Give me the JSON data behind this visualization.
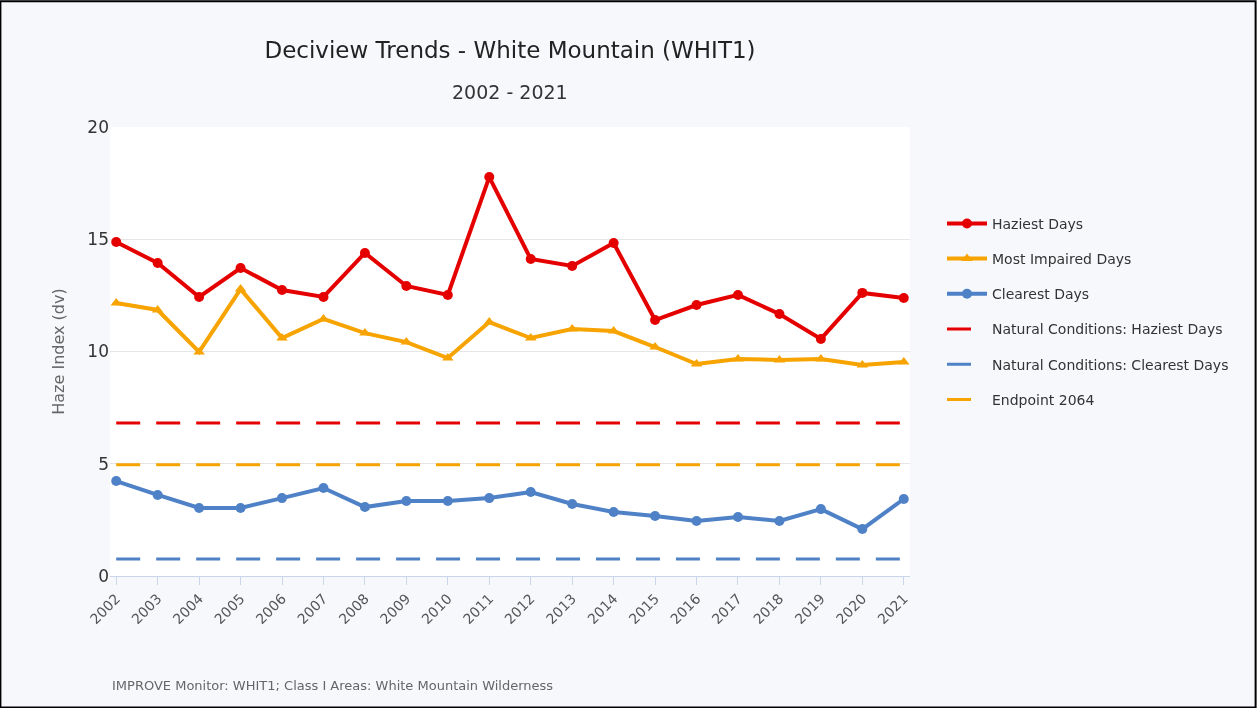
{
  "chart_data": {
    "type": "line",
    "title": "Deciview Trends - White Mountain (WHIT1)",
    "subtitle": "2002 - 2021",
    "ylabel": "Haze Index (dv)",
    "categories": [
      "2002",
      "2003",
      "2004",
      "2005",
      "2006",
      "2007",
      "2008",
      "2009",
      "2010",
      "2011",
      "2012",
      "2013",
      "2014",
      "2015",
      "2016",
      "2017",
      "2018",
      "2019",
      "2020",
      "2021"
    ],
    "series": [
      {
        "name": "Haziest Days",
        "color": "#e50000",
        "marker": "circle",
        "values": [
          14.88,
          13.94,
          12.43,
          13.72,
          12.74,
          12.43,
          14.39,
          12.92,
          12.52,
          17.77,
          14.12,
          13.81,
          14.83,
          11.4,
          12.07,
          12.52,
          11.67,
          10.56,
          12.61,
          12.38
        ]
      },
      {
        "name": "Most Impaired Days",
        "color": "#f7a300",
        "marker": "triangle",
        "values": [
          12.16,
          11.85,
          9.98,
          12.78,
          10.6,
          11.45,
          10.82,
          10.42,
          9.71,
          11.31,
          10.6,
          11.0,
          10.91,
          10.2,
          9.44,
          9.67,
          9.62,
          9.67,
          9.4,
          9.53
        ]
      },
      {
        "name": "Clearest Days",
        "color": "#4f81c7",
        "marker": "circle",
        "values": [
          4.23,
          3.61,
          3.03,
          3.03,
          3.47,
          3.92,
          3.07,
          3.34,
          3.34,
          3.47,
          3.74,
          3.21,
          2.85,
          2.67,
          2.45,
          2.63,
          2.45,
          2.98,
          2.09,
          3.43
        ]
      },
      {
        "name": "Natural Conditions: Haziest Days",
        "color": "#e50000",
        "marker": "none",
        "line_style": "dashed",
        "values": [
          6.82,
          6.82,
          6.82,
          6.82,
          6.82,
          6.82,
          6.82,
          6.82,
          6.82,
          6.82,
          6.82,
          6.82,
          6.82,
          6.82,
          6.82,
          6.82,
          6.82,
          6.82,
          6.82,
          6.82
        ]
      },
      {
        "name": "Natural Conditions: Clearest Days",
        "color": "#4f81c7",
        "marker": "none",
        "line_style": "dashed",
        "values": [
          0.76,
          0.76,
          0.76,
          0.76,
          0.76,
          0.76,
          0.76,
          0.76,
          0.76,
          0.76,
          0.76,
          0.76,
          0.76,
          0.76,
          0.76,
          0.76,
          0.76,
          0.76,
          0.76,
          0.76
        ]
      },
      {
        "name": "Endpoint 2064",
        "color": "#f7a300",
        "marker": "none",
        "line_style": "dashed",
        "values": [
          4.95,
          4.95,
          4.95,
          4.95,
          4.95,
          4.95,
          4.95,
          4.95,
          4.95,
          4.95,
          4.95,
          4.95,
          4.95,
          4.95,
          4.95,
          4.95,
          4.95,
          4.95,
          4.95,
          4.95
        ]
      }
    ],
    "ylim": [
      0,
      20
    ],
    "yticks": [
      0,
      5,
      10,
      15,
      20
    ],
    "grid": "y",
    "legend": "right",
    "annotations": [
      "IMPROVE Monitor: WHIT1; Class I Areas: White Mountain Wilderness"
    ]
  }
}
